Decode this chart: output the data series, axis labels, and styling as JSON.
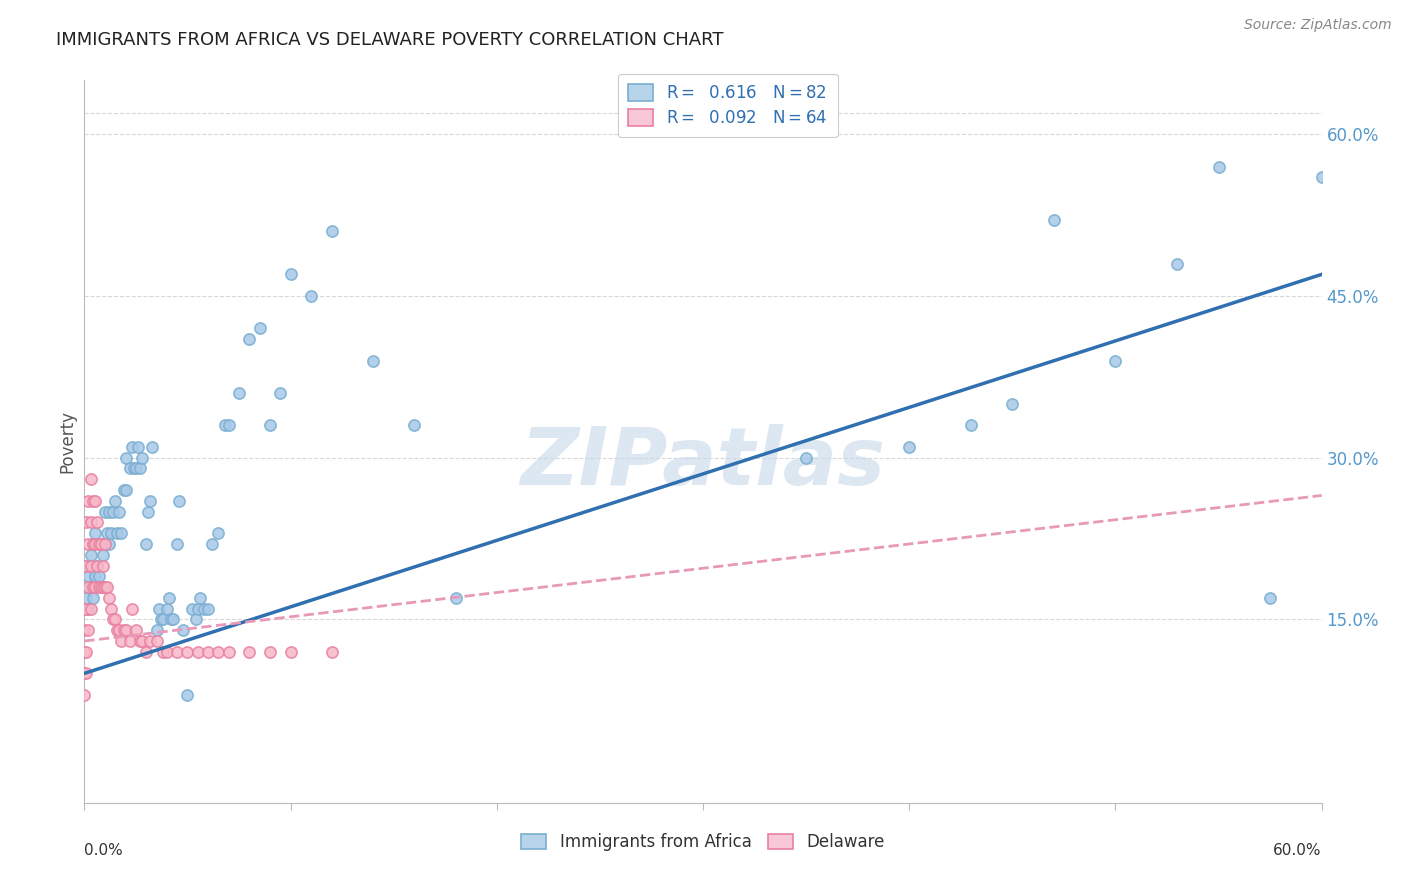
{
  "title": "IMMIGRANTS FROM AFRICA VS DELAWARE POVERTY CORRELATION CHART",
  "source": "Source: ZipAtlas.com",
  "ylabel": "Poverty",
  "xlim": [
    0.0,
    0.6
  ],
  "ylim": [
    -0.02,
    0.65
  ],
  "yticks": [
    0.15,
    0.3,
    0.45,
    0.6
  ],
  "ytick_labels": [
    "15.0%",
    "30.0%",
    "45.0%",
    "60.0%"
  ],
  "watermark": "ZIPatlas",
  "series1_color": "#a8c8e8",
  "series1_edge": "#7aaed0",
  "series2_color": "#f8b8c8",
  "series2_edge": "#e880a0",
  "series1_label": "Immigrants from Africa",
  "series2_label": "Delaware",
  "blue_line_color": "#3070b0",
  "pink_line_color": "#e898b8",
  "blue_x": [
    0.001,
    0.001,
    0.002,
    0.002,
    0.003,
    0.003,
    0.004,
    0.004,
    0.005,
    0.005,
    0.006,
    0.007,
    0.008,
    0.009,
    0.01,
    0.01,
    0.011,
    0.012,
    0.012,
    0.013,
    0.014,
    0.015,
    0.016,
    0.017,
    0.018,
    0.019,
    0.02,
    0.02,
    0.022,
    0.023,
    0.024,
    0.025,
    0.026,
    0.027,
    0.028,
    0.03,
    0.031,
    0.032,
    0.033,
    0.035,
    0.036,
    0.037,
    0.038,
    0.04,
    0.041,
    0.042,
    0.043,
    0.045,
    0.046,
    0.048,
    0.05,
    0.052,
    0.054,
    0.055,
    0.056,
    0.058,
    0.06,
    0.062,
    0.065,
    0.068,
    0.07,
    0.075,
    0.08,
    0.085,
    0.09,
    0.095,
    0.1,
    0.11,
    0.12,
    0.14,
    0.16,
    0.18,
    0.35,
    0.4,
    0.43,
    0.45,
    0.47,
    0.5,
    0.53,
    0.55,
    0.575,
    0.6
  ],
  "blue_y": [
    0.17,
    0.2,
    0.16,
    0.19,
    0.18,
    0.21,
    0.17,
    0.22,
    0.19,
    0.23,
    0.2,
    0.19,
    0.22,
    0.21,
    0.22,
    0.25,
    0.23,
    0.22,
    0.25,
    0.23,
    0.25,
    0.26,
    0.23,
    0.25,
    0.23,
    0.27,
    0.27,
    0.3,
    0.29,
    0.31,
    0.29,
    0.29,
    0.31,
    0.29,
    0.3,
    0.22,
    0.25,
    0.26,
    0.31,
    0.14,
    0.16,
    0.15,
    0.15,
    0.16,
    0.17,
    0.15,
    0.15,
    0.22,
    0.26,
    0.14,
    0.08,
    0.16,
    0.15,
    0.16,
    0.17,
    0.16,
    0.16,
    0.22,
    0.23,
    0.33,
    0.33,
    0.36,
    0.41,
    0.42,
    0.33,
    0.36,
    0.47,
    0.45,
    0.51,
    0.39,
    0.33,
    0.17,
    0.3,
    0.31,
    0.33,
    0.35,
    0.52,
    0.39,
    0.48,
    0.57,
    0.17,
    0.56
  ],
  "pink_x": [
    0.0,
    0.0,
    0.0,
    0.0,
    0.0,
    0.001,
    0.001,
    0.001,
    0.001,
    0.001,
    0.002,
    0.002,
    0.002,
    0.002,
    0.003,
    0.003,
    0.003,
    0.003,
    0.004,
    0.004,
    0.004,
    0.005,
    0.005,
    0.005,
    0.006,
    0.006,
    0.007,
    0.007,
    0.008,
    0.008,
    0.009,
    0.009,
    0.01,
    0.01,
    0.011,
    0.012,
    0.013,
    0.014,
    0.015,
    0.016,
    0.017,
    0.018,
    0.019,
    0.02,
    0.022,
    0.023,
    0.025,
    0.027,
    0.028,
    0.03,
    0.032,
    0.035,
    0.038,
    0.04,
    0.045,
    0.05,
    0.055,
    0.06,
    0.065,
    0.07,
    0.08,
    0.09,
    0.1,
    0.12
  ],
  "pink_y": [
    0.08,
    0.1,
    0.12,
    0.14,
    0.16,
    0.1,
    0.12,
    0.16,
    0.2,
    0.24,
    0.14,
    0.18,
    0.22,
    0.26,
    0.16,
    0.2,
    0.24,
    0.28,
    0.18,
    0.22,
    0.26,
    0.18,
    0.22,
    0.26,
    0.2,
    0.24,
    0.18,
    0.22,
    0.18,
    0.22,
    0.18,
    0.2,
    0.18,
    0.22,
    0.18,
    0.17,
    0.16,
    0.15,
    0.15,
    0.14,
    0.14,
    0.13,
    0.14,
    0.14,
    0.13,
    0.16,
    0.14,
    0.13,
    0.13,
    0.12,
    0.13,
    0.13,
    0.12,
    0.12,
    0.12,
    0.12,
    0.12,
    0.12,
    0.12,
    0.12,
    0.12,
    0.12,
    0.12,
    0.12
  ],
  "blue_trend_x": [
    0.0,
    0.6
  ],
  "blue_trend_y": [
    0.1,
    0.47
  ],
  "pink_trend_x": [
    0.0,
    0.6
  ],
  "pink_trend_y": [
    0.13,
    0.265
  ],
  "background_color": "#ffffff",
  "grid_color": "#d8d8d8",
  "title_color": "#222222",
  "axis_label_color": "#555555",
  "watermark_color": "#c5d8ea"
}
